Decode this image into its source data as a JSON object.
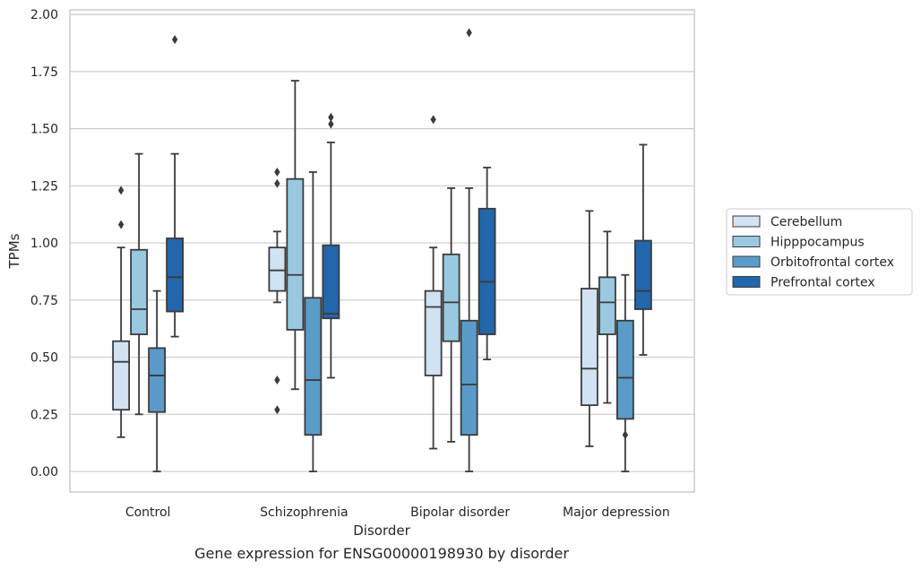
{
  "chart_data": {
    "type": "box",
    "caption": "Gene expression for ENSG00000198930 by disorder",
    "xlabel": "Disorder",
    "ylabel": "TPMs",
    "ylim": [
      -0.09,
      2.02
    ],
    "yticks": [
      0.0,
      0.25,
      0.5,
      0.75,
      1.0,
      1.25,
      1.5,
      1.75,
      2.0
    ],
    "ytick_labels": [
      "0.00",
      "0.25",
      "0.50",
      "0.75",
      "1.00",
      "1.25",
      "1.50",
      "1.75",
      "2.00"
    ],
    "categories": [
      "Control",
      "Schizophrenia",
      "Bipolar disorder",
      "Major depression"
    ],
    "grid": true,
    "legend_position": "right",
    "series": [
      {
        "name": "Cerebellum",
        "color": "#d1e2f2",
        "boxes": [
          {
            "q1": 0.27,
            "median": 0.48,
            "q3": 0.57,
            "whislo": 0.15,
            "whishi": 0.98,
            "fliers": [
              1.08,
              1.23
            ]
          },
          {
            "q1": 0.79,
            "median": 0.88,
            "q3": 0.98,
            "whislo": 0.74,
            "whishi": 1.05,
            "fliers": [
              1.26,
              1.31,
              0.4,
              0.27
            ]
          },
          {
            "q1": 0.42,
            "median": 0.72,
            "q3": 0.79,
            "whislo": 0.1,
            "whishi": 0.98,
            "fliers": [
              1.54
            ]
          },
          {
            "q1": 0.29,
            "median": 0.45,
            "q3": 0.8,
            "whislo": 0.11,
            "whishi": 1.14,
            "fliers": []
          }
        ]
      },
      {
        "name": "Hipppocampus",
        "color": "#9ac8e0",
        "boxes": [
          {
            "q1": 0.6,
            "median": 0.71,
            "q3": 0.97,
            "whislo": 0.25,
            "whishi": 1.39,
            "fliers": []
          },
          {
            "q1": 0.62,
            "median": 0.86,
            "q3": 1.28,
            "whislo": 0.36,
            "whishi": 1.71,
            "fliers": []
          },
          {
            "q1": 0.57,
            "median": 0.74,
            "q3": 0.95,
            "whislo": 0.13,
            "whishi": 1.24,
            "fliers": []
          },
          {
            "q1": 0.6,
            "median": 0.74,
            "q3": 0.85,
            "whislo": 0.3,
            "whishi": 1.05,
            "fliers": []
          }
        ]
      },
      {
        "name": "Orbitofrontal cortex",
        "color": "#5a9bc9",
        "boxes": [
          {
            "q1": 0.26,
            "median": 0.42,
            "q3": 0.54,
            "whislo": 0.0,
            "whishi": 0.79,
            "fliers": []
          },
          {
            "q1": 0.16,
            "median": 0.4,
            "q3": 0.76,
            "whislo": 0.0,
            "whishi": 1.31,
            "fliers": []
          },
          {
            "q1": 0.16,
            "median": 0.38,
            "q3": 0.66,
            "whislo": 0.0,
            "whishi": 1.24,
            "fliers": [
              1.92
            ]
          },
          {
            "q1": 0.23,
            "median": 0.41,
            "q3": 0.66,
            "whislo": 0.0,
            "whishi": 0.86,
            "fliers": [
              0.16
            ]
          }
        ]
      },
      {
        "name": "Prefrontal cortex",
        "color": "#2266ac",
        "boxes": [
          {
            "q1": 0.7,
            "median": 0.85,
            "q3": 1.02,
            "whislo": 0.59,
            "whishi": 1.39,
            "fliers": [
              1.89
            ]
          },
          {
            "q1": 0.67,
            "median": 0.69,
            "q3": 0.99,
            "whislo": 0.41,
            "whishi": 1.44,
            "fliers": [
              1.52,
              1.55
            ]
          },
          {
            "q1": 0.6,
            "median": 0.83,
            "q3": 1.15,
            "whislo": 0.49,
            "whishi": 1.33,
            "fliers": []
          },
          {
            "q1": 0.71,
            "median": 0.79,
            "q3": 1.01,
            "whislo": 0.51,
            "whishi": 1.43,
            "fliers": []
          }
        ]
      }
    ]
  }
}
